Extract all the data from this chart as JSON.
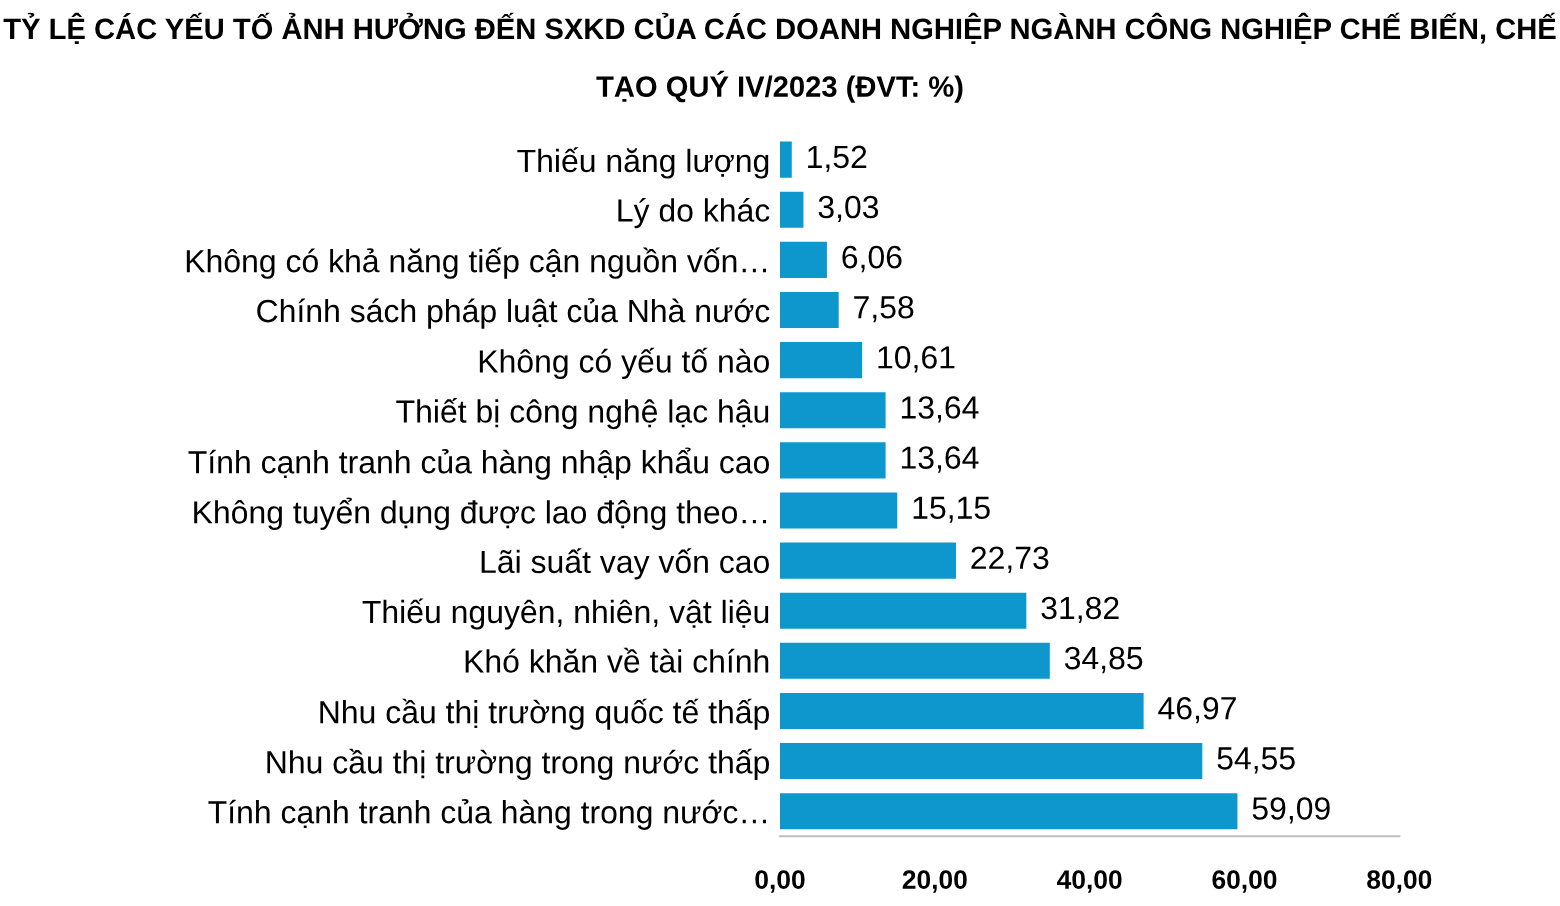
{
  "chart_data": {
    "type": "bar",
    "orientation": "horizontal",
    "title": "TỶ LỆ CÁC YẾU TỐ ẢNH HƯỞNG ĐẾN SXKD CỦA CÁC DOANH NGHIỆP NGÀNH CÔNG NGHIỆP CHẾ BIẾN, CHẾ TẠO QUÝ IV/2023 (ĐVT: %)",
    "categories": [
      "Thiếu năng lượng",
      "Lý do khác",
      "Không có khả năng tiếp cận nguồn vốn…",
      "Chính sách pháp luật của Nhà nước",
      "Không có yếu tố nào",
      "Thiết bị công nghệ lạc hậu",
      "Tính cạnh tranh của hàng nhập khẩu cao",
      "Không tuyển dụng được lao động theo…",
      "Lãi suất vay vốn cao",
      "Thiếu nguyên, nhiên, vật liệu",
      "Khó khăn về tài chính",
      "Nhu cầu thị trường quốc tế thấp",
      "Nhu cầu thị trường trong nước thấp",
      "Tính cạnh tranh của hàng trong nước…"
    ],
    "values": [
      1.52,
      3.03,
      6.06,
      7.58,
      10.61,
      13.64,
      13.64,
      15.15,
      22.73,
      31.82,
      34.85,
      46.97,
      54.55,
      59.09
    ],
    "value_labels": [
      "1,52",
      "3,03",
      "6,06",
      "7,58",
      "10,61",
      "13,64",
      "13,64",
      "15,15",
      "22,73",
      "31,82",
      "34,85",
      "46,97",
      "54,55",
      "59,09"
    ],
    "color": "#0e97cc",
    "xlim": [
      0,
      80
    ],
    "xticks": [
      {
        "value": 0,
        "label": "0,00"
      },
      {
        "value": 20,
        "label": "20,00"
      },
      {
        "value": 40,
        "label": "40,00"
      },
      {
        "value": 60,
        "label": "60,00"
      },
      {
        "value": 80,
        "label": "80,00"
      }
    ],
    "grid": false,
    "legend": false
  }
}
